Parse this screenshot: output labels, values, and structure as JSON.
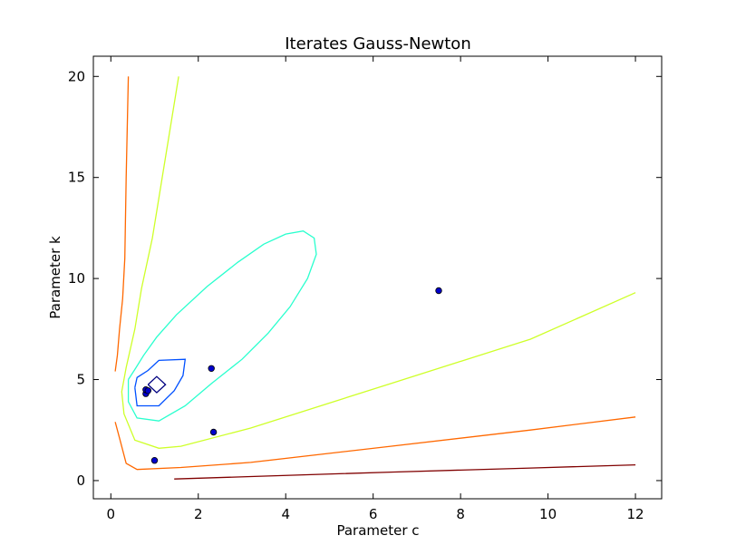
{
  "chart_data": {
    "type": "contour",
    "title": "Iterates Gauss-Newton",
    "xlabel": "Parameter c",
    "ylabel": "Parameter k",
    "xlim": [
      -0.4,
      12.6
    ],
    "ylim": [
      -0.9,
      21.0
    ],
    "xticks": [
      0,
      2,
      4,
      6,
      8,
      10,
      12
    ],
    "yticks": [
      0,
      5,
      10,
      15,
      20
    ],
    "grid": false,
    "contours": [
      {
        "color": "#000080",
        "points": [
          [
            0.85,
            4.75
          ],
          [
            1.05,
            5.15
          ],
          [
            1.25,
            4.75
          ],
          [
            1.05,
            4.35
          ],
          [
            0.85,
            4.75
          ]
        ]
      },
      {
        "color": "#0050ff",
        "points": [
          [
            0.55,
            4.6
          ],
          [
            0.6,
            5.1
          ],
          [
            0.85,
            5.45
          ],
          [
            1.1,
            5.95
          ],
          [
            1.7,
            6.0
          ],
          [
            1.65,
            5.2
          ],
          [
            1.45,
            4.45
          ],
          [
            1.1,
            3.7
          ],
          [
            0.6,
            3.7
          ],
          [
            0.55,
            4.6
          ]
        ]
      },
      {
        "color": "#29ffce",
        "points": [
          [
            0.4,
            5.0
          ],
          [
            0.55,
            5.5
          ],
          [
            0.75,
            6.2
          ],
          [
            1.05,
            7.1
          ],
          [
            1.5,
            8.2
          ],
          [
            2.2,
            9.6
          ],
          [
            2.9,
            10.8
          ],
          [
            3.5,
            11.7
          ],
          [
            4.0,
            12.2
          ],
          [
            4.4,
            12.35
          ],
          [
            4.65,
            12.0
          ],
          [
            4.7,
            11.2
          ],
          [
            4.5,
            10.0
          ],
          [
            4.1,
            8.6
          ],
          [
            3.6,
            7.3
          ],
          [
            3.0,
            6.0
          ],
          [
            2.3,
            4.8
          ],
          [
            1.7,
            3.7
          ],
          [
            1.1,
            2.95
          ],
          [
            0.6,
            3.1
          ],
          [
            0.4,
            3.9
          ],
          [
            0.4,
            5.0
          ]
        ]
      },
      {
        "color": "#ceff29",
        "points": [
          [
            1.55,
            20.0
          ],
          [
            1.25,
            16.0
          ],
          [
            0.95,
            12.0
          ],
          [
            0.7,
            9.5
          ],
          [
            0.55,
            7.5
          ],
          [
            0.35,
            5.6
          ],
          [
            0.25,
            4.4
          ],
          [
            0.3,
            3.3
          ],
          [
            0.55,
            2.0
          ],
          [
            1.1,
            1.6
          ],
          [
            1.6,
            1.7
          ],
          [
            3.2,
            2.6
          ],
          [
            6.4,
            4.8
          ],
          [
            9.6,
            7.0
          ],
          [
            12.0,
            9.3
          ]
        ]
      },
      {
        "color": "#ff6800",
        "points": [
          [
            0.4,
            20.0
          ],
          [
            0.35,
            15.0
          ],
          [
            0.32,
            11.0
          ],
          [
            0.27,
            9.0
          ],
          [
            0.2,
            7.5
          ],
          [
            0.15,
            6.2
          ],
          [
            0.1,
            5.4
          ]
        ]
      },
      {
        "color": "#ff6800",
        "points": [
          [
            0.1,
            2.9
          ],
          [
            0.2,
            2.1
          ],
          [
            0.35,
            0.85
          ],
          [
            0.6,
            0.55
          ],
          [
            1.6,
            0.65
          ],
          [
            3.2,
            0.9
          ],
          [
            6.4,
            1.7
          ],
          [
            9.6,
            2.5
          ],
          [
            12.0,
            3.15
          ]
        ]
      },
      {
        "color": "#800000",
        "points": [
          [
            1.45,
            0.08
          ],
          [
            3.2,
            0.2
          ],
          [
            6.4,
            0.42
          ],
          [
            9.6,
            0.62
          ],
          [
            12.0,
            0.78
          ]
        ]
      }
    ],
    "iterates": {
      "color": "#0000cc",
      "points": [
        [
          1.0,
          1.0
        ],
        [
          2.35,
          2.4
        ],
        [
          2.3,
          5.55
        ],
        [
          7.5,
          9.4
        ],
        [
          0.8,
          4.3
        ],
        [
          0.8,
          4.5
        ],
        [
          0.85,
          4.45
        ]
      ]
    }
  }
}
